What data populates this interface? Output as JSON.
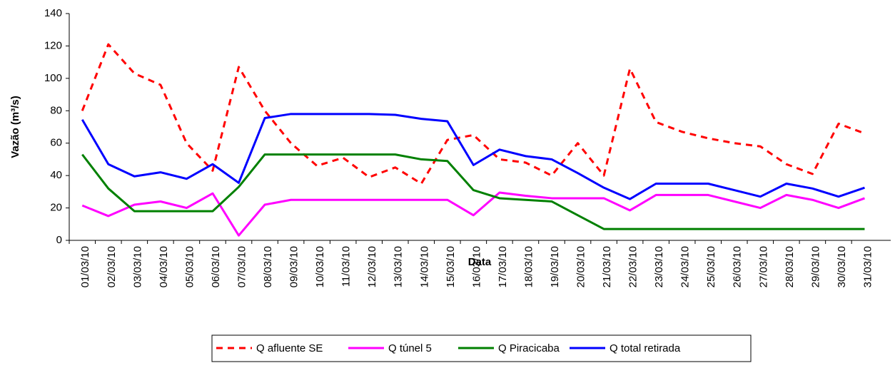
{
  "chart_data": {
    "type": "line",
    "y_label": "Vazão (m³/s)",
    "x_label": "Data",
    "categories": [
      "01/03/10",
      "02/03/10",
      "03/03/10",
      "04/03/10",
      "05/03/10",
      "06/03/10",
      "07/03/10",
      "08/03/10",
      "09/03/10",
      "10/03/10",
      "11/03/10",
      "12/03/10",
      "13/03/10",
      "14/03/10",
      "15/03/10",
      "16/03/10",
      "17/03/10",
      "18/03/10",
      "19/03/10",
      "20/03/10",
      "21/03/10",
      "22/03/10",
      "23/03/10",
      "24/03/10",
      "25/03/10",
      "26/03/10",
      "27/03/10",
      "28/03/10",
      "29/03/10",
      "30/03/10",
      "31/03/10"
    ],
    "series": [
      {
        "name": "Q afluente SE",
        "color": "#ff0000",
        "dashed": true,
        "values": [
          80,
          121,
          103,
          96,
          60,
          43,
          107,
          80,
          60,
          46,
          51,
          39,
          45,
          35,
          62,
          65,
          50,
          48,
          40,
          60,
          40,
          106,
          73,
          67,
          63,
          60,
          58,
          47,
          41,
          72,
          66
        ]
      },
      {
        "name": "Q túnel 5",
        "color": "#ff00ff",
        "values": [
          21.5,
          15,
          22,
          24,
          20,
          29,
          3,
          22,
          25,
          25,
          25,
          25,
          25,
          25,
          25,
          15.5,
          29.5,
          27.5,
          26,
          26,
          26,
          18.5,
          28,
          28,
          28,
          24,
          20,
          28,
          25,
          20,
          26
        ]
      },
      {
        "name": "Q Piracicaba",
        "color": "#008000",
        "values": [
          53,
          32,
          18,
          18,
          18,
          18,
          33,
          53,
          53,
          53,
          53,
          53,
          53,
          50,
          49,
          31,
          26,
          25,
          24,
          15.5,
          7,
          7,
          7,
          7,
          7,
          7,
          7,
          7,
          7,
          7,
          7
        ]
      },
      {
        "name": "Q total retirada",
        "color": "#0000ff",
        "values": [
          74.5,
          47,
          39.5,
          42,
          38,
          47,
          35.5,
          75.5,
          78,
          78,
          78,
          78,
          77.5,
          75,
          73.5,
          46.5,
          56,
          52,
          50,
          41.5,
          32.5,
          25.5,
          35,
          35,
          35,
          31,
          27,
          35,
          32,
          27,
          32.5
        ]
      }
    ],
    "ylim": [
      0,
      140
    ],
    "yticks": [
      0,
      20,
      40,
      60,
      80,
      100,
      120,
      140
    ]
  }
}
